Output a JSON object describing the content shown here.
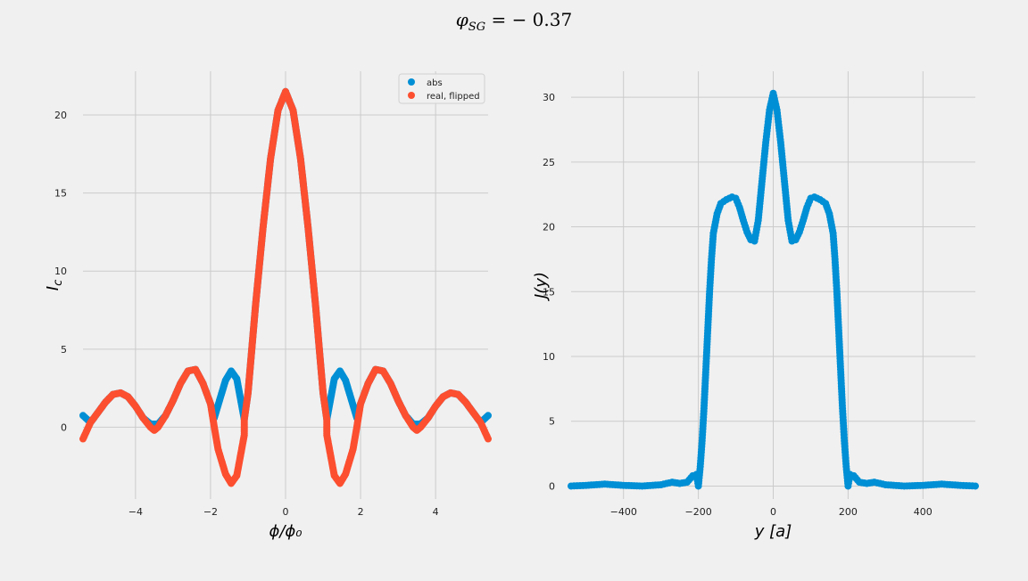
{
  "figure": {
    "suptitle_var": "φ",
    "suptitle_sub": "SG",
    "suptitle_rest": " = − 0.37"
  },
  "colors": {
    "background": "#f0f0f0",
    "grid": "#cbcbcb",
    "abs": "#008fd5",
    "real": "#fc4f30"
  },
  "chart_data": [
    {
      "type": "scatter",
      "xlabel": "ϕ/ϕ₀",
      "ylabel": "I",
      "ylabel_sub": "c",
      "xlim": [
        -5.4,
        5.4
      ],
      "ylim": [
        -4.6,
        22.8
      ],
      "xticks": [
        -4,
        -2,
        0,
        2,
        4
      ],
      "xtick_labels": [
        "−4",
        "−2",
        "0",
        "2",
        "4"
      ],
      "yticks": [
        0,
        5,
        10,
        15,
        20
      ],
      "ytick_labels": [
        "0",
        "5",
        "10",
        "15",
        "20"
      ],
      "grid": true,
      "legend_position": "top-right",
      "series": [
        {
          "name": "abs",
          "color": "#008fd5",
          "points": [
            [
              -5.4,
              0.75
            ],
            [
              -5.2,
              0.3
            ],
            [
              -5.0,
              0.95
            ],
            [
              -4.8,
              1.6
            ],
            [
              -4.6,
              2.1
            ],
            [
              -4.4,
              2.2
            ],
            [
              -4.2,
              1.95
            ],
            [
              -4.0,
              1.35
            ],
            [
              -3.8,
              0.6
            ],
            [
              -3.6,
              0.2
            ],
            [
              -3.4,
              0.2
            ],
            [
              -3.2,
              0.75
            ],
            [
              -3.0,
              1.7
            ],
            [
              -2.8,
              2.8
            ],
            [
              -2.6,
              3.6
            ],
            [
              -2.4,
              3.7
            ],
            [
              -2.2,
              2.8
            ],
            [
              -2.0,
              1.5
            ],
            [
              -1.9,
              0.6
            ],
            [
              -1.8,
              1.4
            ],
            [
              -1.6,
              3.0
            ],
            [
              -1.45,
              3.6
            ],
            [
              -1.3,
              3.1
            ],
            [
              -1.2,
              1.8
            ],
            [
              -1.1,
              0.5
            ],
            [
              -1.0,
              2.2
            ],
            [
              -0.8,
              7.8
            ],
            [
              -0.6,
              12.8
            ],
            [
              -0.4,
              17.2
            ],
            [
              -0.2,
              20.3
            ],
            [
              0.0,
              21.5
            ],
            [
              0.2,
              20.3
            ],
            [
              0.4,
              17.2
            ],
            [
              0.6,
              12.8
            ],
            [
              0.8,
              7.8
            ],
            [
              1.0,
              2.2
            ],
            [
              1.1,
              0.5
            ],
            [
              1.2,
              1.8
            ],
            [
              1.3,
              3.1
            ],
            [
              1.45,
              3.6
            ],
            [
              1.6,
              3.0
            ],
            [
              1.8,
              1.4
            ],
            [
              1.9,
              0.6
            ],
            [
              2.0,
              1.5
            ],
            [
              2.2,
              2.8
            ],
            [
              2.4,
              3.7
            ],
            [
              2.6,
              3.6
            ],
            [
              2.8,
              2.8
            ],
            [
              3.0,
              1.7
            ],
            [
              3.2,
              0.75
            ],
            [
              3.4,
              0.2
            ],
            [
              3.6,
              0.2
            ],
            [
              3.8,
              0.6
            ],
            [
              4.0,
              1.35
            ],
            [
              4.2,
              1.95
            ],
            [
              4.4,
              2.2
            ],
            [
              4.6,
              2.1
            ],
            [
              4.8,
              1.6
            ],
            [
              5.0,
              0.95
            ],
            [
              5.2,
              0.3
            ],
            [
              5.4,
              0.75
            ]
          ]
        },
        {
          "name": "real, flipped",
          "color": "#fc4f30",
          "points": [
            [
              -5.4,
              -0.75
            ],
            [
              -5.2,
              0.3
            ],
            [
              -5.0,
              0.95
            ],
            [
              -4.8,
              1.6
            ],
            [
              -4.6,
              2.1
            ],
            [
              -4.4,
              2.2
            ],
            [
              -4.2,
              1.95
            ],
            [
              -4.0,
              1.35
            ],
            [
              -3.8,
              0.6
            ],
            [
              -3.6,
              0.0
            ],
            [
              -3.5,
              -0.2
            ],
            [
              -3.4,
              0.0
            ],
            [
              -3.2,
              0.75
            ],
            [
              -3.0,
              1.7
            ],
            [
              -2.8,
              2.8
            ],
            [
              -2.6,
              3.6
            ],
            [
              -2.4,
              3.7
            ],
            [
              -2.2,
              2.8
            ],
            [
              -2.0,
              1.5
            ],
            [
              -1.9,
              0.0
            ],
            [
              -1.8,
              -1.4
            ],
            [
              -1.6,
              -3.0
            ],
            [
              -1.45,
              -3.6
            ],
            [
              -1.3,
              -3.1
            ],
            [
              -1.2,
              -1.8
            ],
            [
              -1.1,
              -0.5
            ],
            [
              -1.1,
              0.5
            ],
            [
              -1.0,
              2.2
            ],
            [
              -0.8,
              7.8
            ],
            [
              -0.6,
              12.8
            ],
            [
              -0.4,
              17.2
            ],
            [
              -0.2,
              20.3
            ],
            [
              0.0,
              21.5
            ],
            [
              0.2,
              20.3
            ],
            [
              0.4,
              17.2
            ],
            [
              0.6,
              12.8
            ],
            [
              0.8,
              7.8
            ],
            [
              1.0,
              2.2
            ],
            [
              1.1,
              0.5
            ],
            [
              1.1,
              -0.5
            ],
            [
              1.2,
              -1.8
            ],
            [
              1.3,
              -3.1
            ],
            [
              1.45,
              -3.6
            ],
            [
              1.6,
              -3.0
            ],
            [
              1.8,
              -1.4
            ],
            [
              1.9,
              0.0
            ],
            [
              2.0,
              1.5
            ],
            [
              2.2,
              2.8
            ],
            [
              2.4,
              3.7
            ],
            [
              2.6,
              3.6
            ],
            [
              2.8,
              2.8
            ],
            [
              3.0,
              1.7
            ],
            [
              3.2,
              0.75
            ],
            [
              3.4,
              0.0
            ],
            [
              3.5,
              -0.2
            ],
            [
              3.6,
              0.0
            ],
            [
              3.8,
              0.6
            ],
            [
              4.0,
              1.35
            ],
            [
              4.2,
              1.95
            ],
            [
              4.4,
              2.2
            ],
            [
              4.6,
              2.1
            ],
            [
              4.8,
              1.6
            ],
            [
              5.0,
              0.95
            ],
            [
              5.2,
              0.3
            ],
            [
              5.4,
              -0.75
            ]
          ]
        }
      ]
    },
    {
      "type": "scatter",
      "xlabel": "y [a]",
      "ylabel": "J(y)",
      "xlim": [
        -540,
        540
      ],
      "ylim": [
        -1.0,
        32.0
      ],
      "xticks": [
        -400,
        -200,
        0,
        200,
        400
      ],
      "xtick_labels": [
        "−400",
        "−200",
        "0",
        "200",
        "400"
      ],
      "yticks": [
        0,
        5,
        10,
        15,
        20,
        25,
        30
      ],
      "ytick_labels": [
        "0",
        "5",
        "10",
        "15",
        "20",
        "25",
        "30"
      ],
      "grid": true,
      "series": [
        {
          "color": "#008fd5",
          "points": [
            [
              -540,
              0.0
            ],
            [
              -500,
              0.05
            ],
            [
              -450,
              0.15
            ],
            [
              -400,
              0.05
            ],
            [
              -350,
              0.0
            ],
            [
              -300,
              0.1
            ],
            [
              -270,
              0.3
            ],
            [
              -250,
              0.2
            ],
            [
              -230,
              0.3
            ],
            [
              -215,
              0.8
            ],
            [
              -205,
              0.9
            ],
            [
              -200,
              0.0
            ],
            [
              -195,
              1.5
            ],
            [
              -190,
              3.5
            ],
            [
              -185,
              6.0
            ],
            [
              -180,
              9.0
            ],
            [
              -175,
              12.0
            ],
            [
              -170,
              15.0
            ],
            [
              -165,
              17.5
            ],
            [
              -160,
              19.5
            ],
            [
              -150,
              21.0
            ],
            [
              -140,
              21.8
            ],
            [
              -125,
              22.1
            ],
            [
              -110,
              22.3
            ],
            [
              -100,
              22.2
            ],
            [
              -90,
              21.5
            ],
            [
              -80,
              20.5
            ],
            [
              -70,
              19.6
            ],
            [
              -60,
              19.0
            ],
            [
              -50,
              18.9
            ],
            [
              -40,
              20.5
            ],
            [
              -30,
              23.5
            ],
            [
              -20,
              26.5
            ],
            [
              -10,
              29.0
            ],
            [
              0,
              30.3
            ],
            [
              10,
              29.0
            ],
            [
              20,
              26.5
            ],
            [
              30,
              23.5
            ],
            [
              40,
              20.5
            ],
            [
              50,
              18.9
            ],
            [
              60,
              19.0
            ],
            [
              70,
              19.6
            ],
            [
              80,
              20.5
            ],
            [
              90,
              21.5
            ],
            [
              100,
              22.2
            ],
            [
              110,
              22.3
            ],
            [
              125,
              22.1
            ],
            [
              140,
              21.8
            ],
            [
              150,
              21.0
            ],
            [
              160,
              19.5
            ],
            [
              165,
              17.5
            ],
            [
              170,
              15.0
            ],
            [
              175,
              12.0
            ],
            [
              180,
              9.0
            ],
            [
              185,
              6.0
            ],
            [
              190,
              3.5
            ],
            [
              195,
              1.5
            ],
            [
              200,
              0.0
            ],
            [
              205,
              0.9
            ],
            [
              215,
              0.8
            ],
            [
              230,
              0.3
            ],
            [
              250,
              0.2
            ],
            [
              270,
              0.3
            ],
            [
              300,
              0.1
            ],
            [
              350,
              0.0
            ],
            [
              400,
              0.05
            ],
            [
              450,
              0.15
            ],
            [
              500,
              0.05
            ],
            [
              540,
              0.0
            ]
          ]
        }
      ]
    }
  ]
}
